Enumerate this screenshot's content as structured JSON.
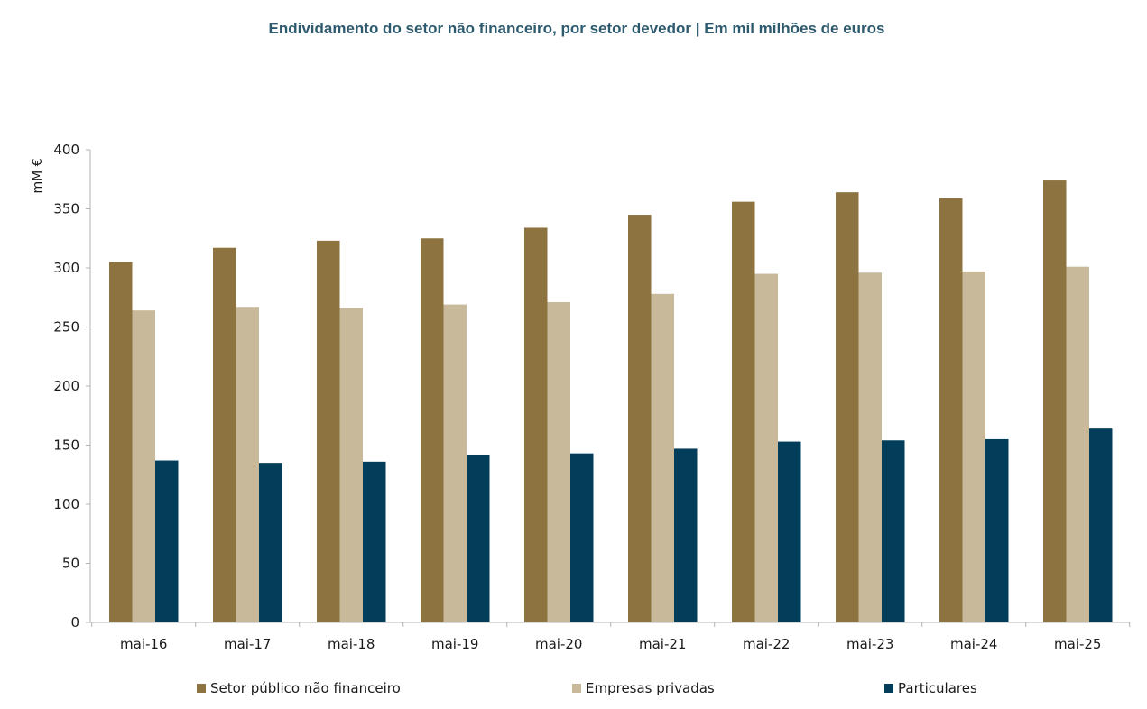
{
  "chart_data": {
    "type": "bar",
    "title": "Endividamento do setor não financeiro, por setor devedor | Em mil milhões de euros",
    "ylabel": "mM €",
    "xlabel": "",
    "ylim": [
      0,
      400
    ],
    "yticks": [
      0,
      50,
      100,
      150,
      200,
      250,
      300,
      350,
      400
    ],
    "categories": [
      "mai-16",
      "mai-17",
      "mai-18",
      "mai-19",
      "mai-20",
      "mai-21",
      "mai-22",
      "mai-23",
      "mai-24",
      "mai-25"
    ],
    "series": [
      {
        "name": "Setor público não financeiro",
        "color": "#8C7340",
        "values": [
          305,
          317,
          323,
          325,
          334,
          345,
          356,
          364,
          359,
          374
        ]
      },
      {
        "name": "Empresas privadas",
        "color": "#C8B99B",
        "values": [
          264,
          267,
          266,
          269,
          271,
          278,
          295,
          296,
          297,
          301
        ]
      },
      {
        "name": "Particulares",
        "color": "#023E5A",
        "values": [
          137,
          135,
          136,
          142,
          143,
          147,
          153,
          154,
          155,
          164
        ]
      }
    ],
    "grid": false,
    "legend_position": "bottom"
  }
}
